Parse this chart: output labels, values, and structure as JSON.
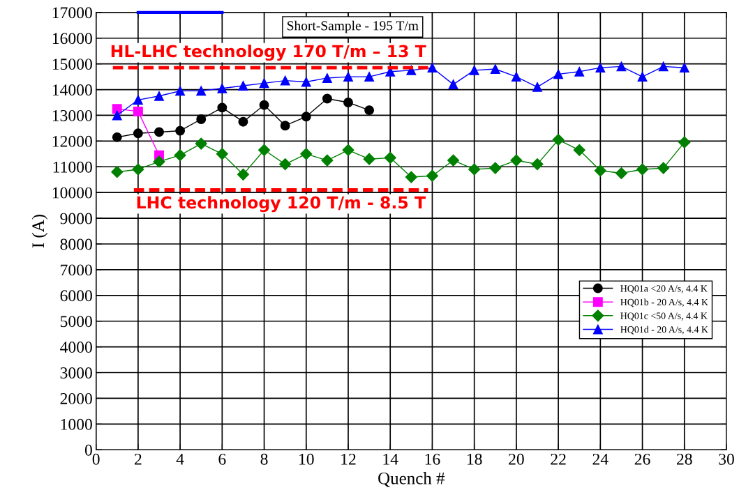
{
  "chart_data": {
    "type": "line",
    "xlabel": "Quench #",
    "ylabel": "I (A)",
    "xlim": [
      0,
      30
    ],
    "xticks": [
      0,
      2,
      4,
      6,
      8,
      10,
      12,
      14,
      16,
      18,
      20,
      22,
      24,
      26,
      28,
      30
    ],
    "ylim": [
      0,
      17000
    ],
    "yticks": [
      0,
      1000,
      2000,
      3000,
      4000,
      5000,
      6000,
      7000,
      8000,
      9000,
      10000,
      11000,
      12000,
      13000,
      14000,
      15000,
      16000,
      17000
    ],
    "grid": true,
    "legend": "right",
    "series": [
      {
        "name": "HQ01a <20 A/s, 4.4 K",
        "color": "#000000",
        "marker": "circle",
        "x": [
          1,
          2,
          3,
          4,
          5,
          6,
          7,
          8,
          9,
          10,
          11,
          12,
          13
        ],
        "values": [
          12150,
          12300,
          12350,
          12400,
          12850,
          13300,
          12750,
          13400,
          12600,
          12950,
          13650,
          13500,
          13200
        ]
      },
      {
        "name": "HQ01b - 20 A/s, 4.4 K",
        "color": "#ff00ff",
        "marker": "square",
        "x": [
          1,
          2,
          3
        ],
        "values": [
          13250,
          13150,
          11450
        ]
      },
      {
        "name": "HQ01c <50 A/s, 4.4 K",
        "color": "#008000",
        "marker": "diamond",
        "x": [
          1,
          2,
          3,
          4,
          5,
          6,
          7,
          8,
          9,
          10,
          11,
          12,
          13,
          14,
          15,
          16,
          17,
          18,
          19,
          20,
          21,
          22,
          23,
          24,
          25,
          26,
          27,
          28
        ],
        "values": [
          10800,
          10900,
          11200,
          11450,
          11900,
          11500,
          10700,
          11650,
          11100,
          11500,
          11250,
          11650,
          11300,
          11350,
          10600,
          10650,
          11250,
          10900,
          10950,
          11250,
          11100,
          12050,
          11650,
          10850,
          10750,
          10900,
          10950,
          11950
        ]
      },
      {
        "name": "HQ01d - 20 A/s, 4.4 K",
        "color": "#0000ff",
        "marker": "triangle",
        "x": [
          1,
          2,
          3,
          4,
          5,
          6,
          7,
          8,
          9,
          10,
          11,
          12,
          13,
          14,
          15,
          16,
          17,
          18,
          19,
          20,
          21,
          22,
          23,
          24,
          25,
          26,
          27,
          28
        ],
        "values": [
          13000,
          13600,
          13750,
          13950,
          13950,
          14050,
          14150,
          14250,
          14350,
          14300,
          14450,
          14500,
          14500,
          14700,
          14750,
          14850,
          14200,
          14750,
          14800,
          14500,
          14100,
          14600,
          14700,
          14850,
          14900,
          14500,
          14900,
          14850
        ]
      },
      {
        "color": "#0000ff",
        "marker": "none",
        "x": [
          2,
          6
        ],
        "values": [
          17000,
          17000
        ]
      },
      {
        "color": "#ff0000",
        "marker": "none",
        "line_style": "dashed",
        "x": [
          0.8,
          15.8
        ],
        "values": [
          14850,
          14850
        ]
      },
      {
        "color": "#ff0000",
        "marker": "none",
        "line_style": "dashed",
        "x": [
          1.8,
          15.8
        ],
        "values": [
          10100,
          10100
        ]
      }
    ],
    "annotations": [
      "Short-Sample - 195 T/m",
      "HL-LHC technology 170 T/m – 13 T",
      "LHC technology 120 T/m - 8.5 T"
    ]
  }
}
